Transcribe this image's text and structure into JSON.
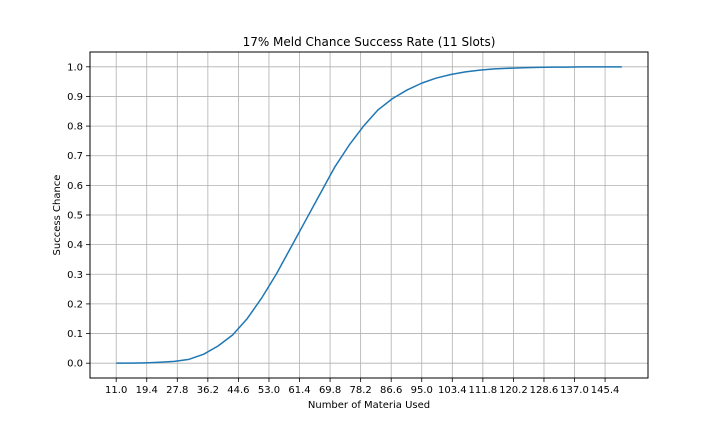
{
  "chart_data": {
    "type": "line",
    "title": "17% Meld Chance Success Rate (11 Slots)",
    "xlabel": "Number of Materia Used",
    "ylabel": "Success Chance",
    "xlim": [
      3.8,
      157.2
    ],
    "ylim": [
      -0.05,
      1.05
    ],
    "x_ticks": [
      "11.0",
      "19.4",
      "27.8",
      "36.2",
      "44.6",
      "53.0",
      "61.4",
      "69.8",
      "78.2",
      "86.6",
      "95.0",
      "103.4",
      "111.8",
      "120.2",
      "128.6",
      "137.0",
      "145.4"
    ],
    "y_ticks": [
      "0.0",
      "0.1",
      "0.2",
      "0.3",
      "0.4",
      "0.5",
      "0.6",
      "0.7",
      "0.8",
      "0.9",
      "1.0"
    ],
    "grid": true,
    "line_color": "#1f77b4",
    "series": [
      {
        "name": "",
        "x": [
          11,
          15,
          19,
          23,
          27,
          31,
          35,
          39,
          43,
          47,
          51,
          55,
          59,
          63,
          67,
          71,
          75,
          79,
          83,
          87,
          91,
          95,
          99,
          103,
          107,
          111,
          115,
          119,
          123,
          127,
          131,
          135,
          139,
          143,
          147,
          150
        ],
        "y": [
          0.0,
          0.0,
          0.001,
          0.003,
          0.006,
          0.013,
          0.03,
          0.058,
          0.095,
          0.15,
          0.22,
          0.3,
          0.39,
          0.48,
          0.57,
          0.66,
          0.735,
          0.8,
          0.855,
          0.893,
          0.922,
          0.945,
          0.962,
          0.974,
          0.983,
          0.989,
          0.993,
          0.995,
          0.997,
          0.998,
          0.999,
          0.999,
          1.0,
          1.0,
          1.0,
          1.0
        ]
      }
    ]
  }
}
